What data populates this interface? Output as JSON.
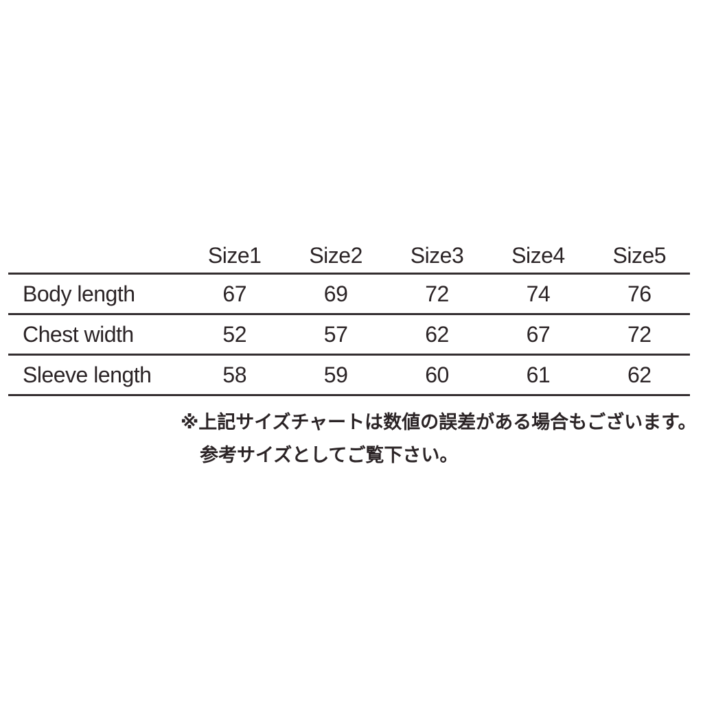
{
  "colors": {
    "background": "#ffffff",
    "text": "#2b2426",
    "rule_line": "#332d2f"
  },
  "chart_data": {
    "type": "table",
    "columns": [
      "Size1",
      "Size2",
      "Size3",
      "Size4",
      "Size5"
    ],
    "rows": [
      {
        "label": "Body length",
        "values": [
          "67",
          "69",
          "72",
          "74",
          "76"
        ]
      },
      {
        "label": "Chest width",
        "values": [
          "52",
          "57",
          "62",
          "67",
          "72"
        ]
      },
      {
        "label": "Sleeve length",
        "values": [
          "58",
          "59",
          "60",
          "61",
          "62"
        ]
      }
    ],
    "notes": [
      "※上記サイズチャートは数値の誤差がある場合もございます。",
      "参考サイズとしてご覧下さい。"
    ],
    "layout": {
      "header_row": true,
      "grid": "horizontal-rules-only",
      "value_alignment": "center"
    }
  }
}
